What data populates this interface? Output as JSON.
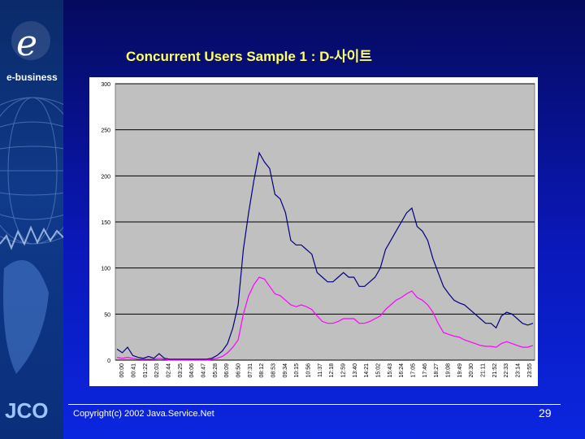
{
  "slide": {
    "brand": "e-business",
    "footer_logo": "JCO",
    "title": "Concurrent Users Sample 1 : D-사이트",
    "copyright": "Copyright(c) 2002 Java.Service.Net",
    "page_number": "29"
  },
  "colors": {
    "background": "#0a18b8",
    "title": "#ffff66",
    "plot_area": "#c0c0c0",
    "series_1": "#000080",
    "series_2": "#ff00ff"
  },
  "chart_data": {
    "type": "line",
    "title": "",
    "xlabel": "",
    "ylabel": "",
    "ylim": [
      0,
      300
    ],
    "yticks": [
      0,
      50,
      100,
      150,
      200,
      250,
      300
    ],
    "xticks": [
      "00:00",
      "00:41",
      "01:22",
      "02:03",
      "02:44",
      "03:25",
      "04:06",
      "04:47",
      "05:28",
      "06:09",
      "06:50",
      "07:31",
      "08:12",
      "08:53",
      "09:34",
      "10:15",
      "10:56",
      "11:37",
      "12:18",
      "12:59",
      "13:40",
      "14:21",
      "15:02",
      "15:43",
      "16:24",
      "17:05",
      "17:46",
      "18:27",
      "19:08",
      "19:49",
      "20:30",
      "21:11",
      "21:52",
      "22:33",
      "23:14",
      "23:55"
    ],
    "grid": "horizontal",
    "legend": "none",
    "series": [
      {
        "values": [
          12,
          8,
          14,
          5,
          3,
          2,
          4,
          2,
          7,
          2,
          1,
          1,
          1,
          1,
          1,
          1,
          1,
          1,
          2,
          5,
          10,
          18,
          35,
          60,
          120,
          160,
          195,
          225,
          215,
          208,
          180,
          175,
          160,
          130,
          125,
          125,
          120,
          115,
          95,
          90,
          85,
          85,
          90,
          95,
          90,
          90,
          80,
          80,
          85,
          90,
          100,
          120,
          130,
          140,
          150,
          160,
          165,
          145,
          140,
          130,
          110,
          95,
          80,
          72,
          65,
          62,
          60,
          55,
          50,
          45,
          40,
          40,
          35,
          48,
          52,
          50,
          45,
          40,
          38,
          40
        ]
      },
      {
        "values": [
          3,
          2,
          3,
          2,
          1,
          1,
          1,
          1,
          2,
          1,
          0,
          0,
          0,
          0,
          0,
          0,
          0,
          0,
          1,
          2,
          4,
          8,
          14,
          22,
          50,
          70,
          82,
          90,
          88,
          80,
          72,
          70,
          65,
          60,
          58,
          60,
          58,
          55,
          48,
          42,
          40,
          40,
          42,
          45,
          45,
          45,
          40,
          40,
          42,
          45,
          48,
          55,
          60,
          65,
          68,
          72,
          75,
          68,
          65,
          60,
          52,
          40,
          30,
          28,
          26,
          25,
          22,
          20,
          18,
          16,
          15,
          15,
          14,
          18,
          20,
          18,
          16,
          14,
          14,
          16
        ]
      }
    ]
  }
}
